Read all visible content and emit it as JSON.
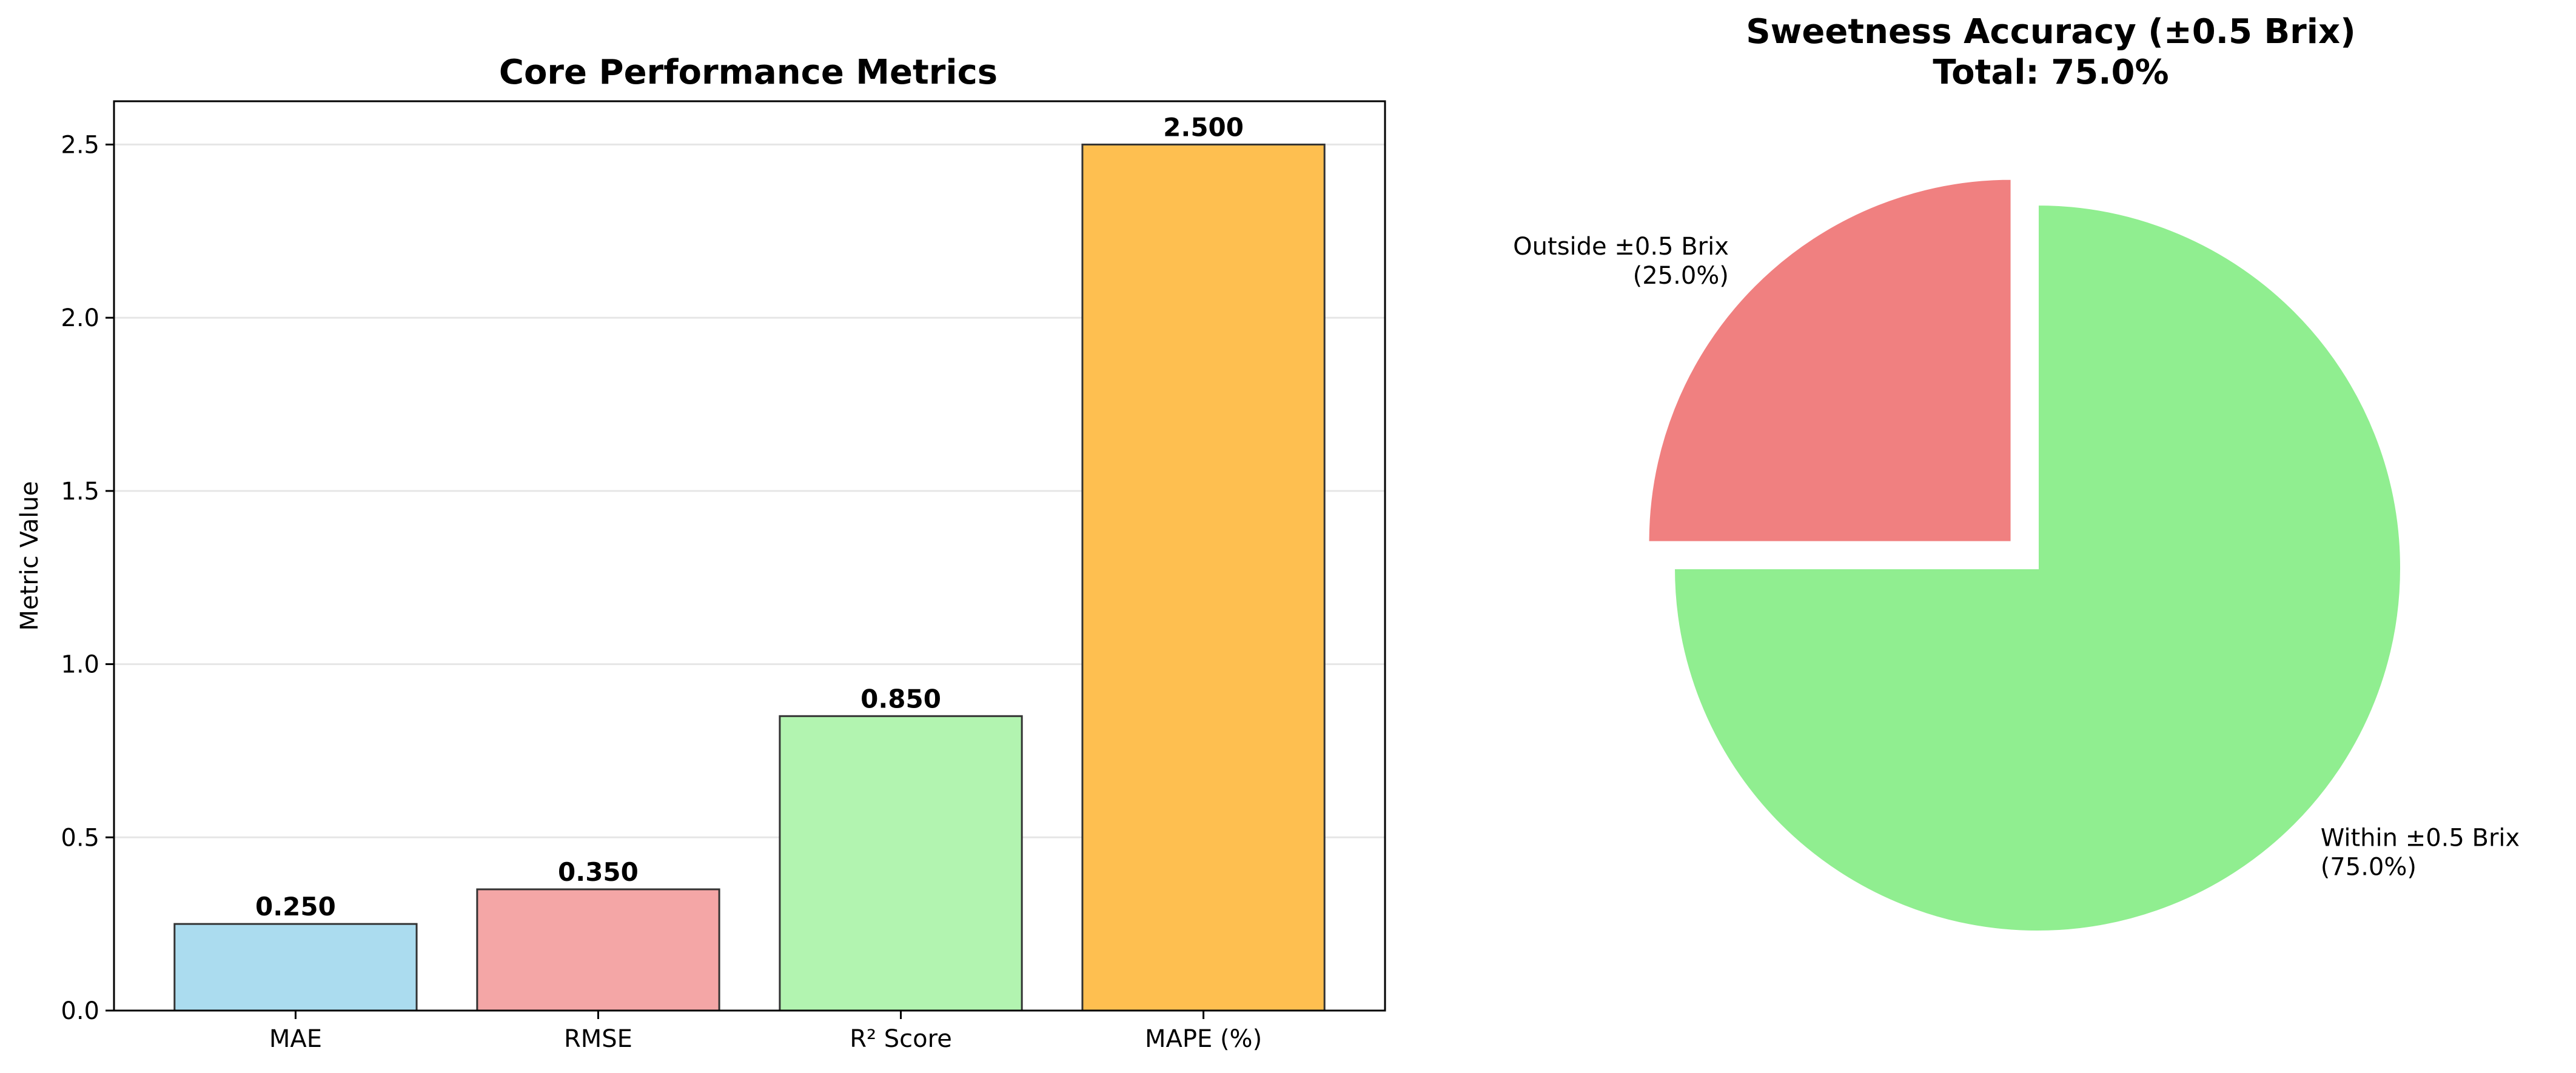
{
  "chart_data": [
    {
      "type": "bar",
      "title": "Core Performance Metrics",
      "xlabel": "",
      "ylabel": "Metric Value",
      "categories": [
        "MAE",
        "RMSE",
        "R² Score",
        "MAPE (%)"
      ],
      "values": [
        0.25,
        0.35,
        0.85,
        2.5
      ],
      "value_labels": [
        "0.250",
        "0.350",
        "0.850",
        "2.500"
      ],
      "colors": [
        "#ABDCEF",
        "#F4A6A6",
        "#B2F4B0",
        "#FEBF50"
      ],
      "ylim": [
        0,
        2.625
      ],
      "yticks": [
        0.0,
        0.5,
        1.0,
        1.5,
        2.0,
        2.5
      ],
      "ytick_labels": [
        "0.0",
        "0.5",
        "1.0",
        "1.5",
        "2.0",
        "2.5"
      ],
      "grid": "y"
    },
    {
      "type": "pie",
      "title_line1": "Sweetness Accuracy (±0.5 Brix)",
      "title_line2": "Total: 75.0%",
      "slices": [
        {
          "label": "Outside ±0.5 Brix",
          "pct_label": "(25.0%)",
          "value": 25.0,
          "color": "#F08080",
          "explode": true
        },
        {
          "label": "Within ±0.5 Brix",
          "pct_label": "(75.0%)",
          "value": 75.0,
          "color": "#90EE90",
          "explode": false
        }
      ]
    }
  ]
}
